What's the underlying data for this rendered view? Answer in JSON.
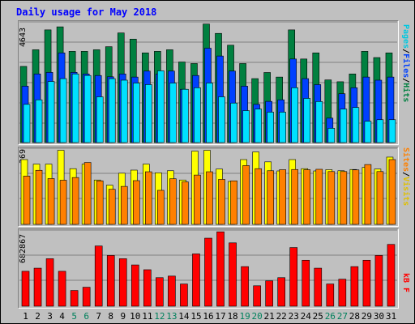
{
  "title": "Daily usage for May 2018",
  "colors": {
    "hits": "#008040",
    "files": "#0040ff",
    "pages": "#00e0ff",
    "visits": "#ffff00",
    "sites": "#ff8000",
    "kbytes": "#ff0000",
    "title": "#0000ff",
    "weekend": "#00805c",
    "weekday": "#000000"
  },
  "chart_data": [
    {
      "type": "bar",
      "panel": "top",
      "y_max_label": "4643",
      "ylim": [
        0,
        4643
      ],
      "legend": [
        "Pages",
        "Files",
        "Hits"
      ],
      "categories": [
        "1",
        "2",
        "3",
        "4",
        "5",
        "6",
        "7",
        "8",
        "9",
        "10",
        "11",
        "12",
        "13",
        "14",
        "15",
        "16",
        "17",
        "18",
        "19",
        "20",
        "21",
        "22",
        "23",
        "24",
        "25",
        "26",
        "27",
        "28",
        "29",
        "30",
        "31"
      ],
      "weekend_days": [
        "5",
        "6",
        "12",
        "13",
        "19",
        "20",
        "26",
        "27"
      ],
      "series": [
        {
          "name": "Hits",
          "values": [
            2930,
            3570,
            4335,
            4452,
            3510,
            3510,
            3570,
            3688,
            4217,
            3980,
            3450,
            3510,
            3570,
            3100,
            3040,
            4560,
            4200,
            3745,
            3040,
            2460,
            2695,
            2520,
            4335,
            3215,
            3450,
            2410,
            2340,
            2640,
            3510,
            3270,
            3450
          ]
        },
        {
          "name": "Files",
          "values": [
            2170,
            2640,
            2700,
            3450,
            2700,
            2640,
            2580,
            2530,
            2640,
            2520,
            2750,
            2640,
            2750,
            2050,
            2580,
            3630,
            3330,
            2750,
            2170,
            1470,
            1585,
            1645,
            3215,
            2460,
            2230,
            940,
            1880,
            2110,
            2520,
            2400,
            2520
          ]
        },
        {
          "name": "Pages",
          "values": [
            1470,
            1645,
            2350,
            2460,
            2640,
            2580,
            1760,
            2460,
            2400,
            2290,
            2230,
            2760,
            2290,
            2050,
            2110,
            2290,
            1760,
            1520,
            1230,
            1290,
            1170,
            1170,
            2110,
            1700,
            1580,
            550,
            1290,
            1350,
            820,
            880,
            880
          ]
        }
      ]
    },
    {
      "type": "bar",
      "panel": "middle",
      "y_max_label": "369",
      "ylim": [
        0,
        369
      ],
      "legend": [
        "Sites",
        "Visits"
      ],
      "categories": [
        "1",
        "2",
        "3",
        "4",
        "5",
        "6",
        "7",
        "8",
        "9",
        "10",
        "11",
        "12",
        "13",
        "14",
        "15",
        "16",
        "17",
        "18",
        "19",
        "20",
        "21",
        "22",
        "23",
        "24",
        "25",
        "26",
        "27",
        "28",
        "29",
        "30",
        "31"
      ],
      "series": [
        {
          "name": "Visits",
          "values": [
            314,
            292,
            292,
            359,
            270,
            292,
            215,
            190,
            248,
            263,
            292,
            250,
            260,
            215,
            355,
            359,
            268,
            208,
            314,
            351,
            303,
            259,
            314,
            270,
            259,
            265,
            260,
            266,
            276,
            268,
            326
          ]
        },
        {
          "name": "Sites",
          "values": [
            234,
            262,
            222,
            214,
            227,
            300,
            211,
            170,
            184,
            212,
            255,
            165,
            221,
            206,
            239,
            255,
            218,
            211,
            285,
            270,
            260,
            265,
            266,
            265,
            267,
            256,
            256,
            264,
            290,
            256,
            314
          ]
        }
      ]
    },
    {
      "type": "bar",
      "panel": "bottom",
      "y_max_label": "682867",
      "ylim": [
        0,
        682867
      ],
      "legend": [
        "KBytes"
      ],
      "legend_text": "kB F",
      "categories": [
        "1",
        "2",
        "3",
        "4",
        "5",
        "6",
        "7",
        "8",
        "9",
        "10",
        "11",
        "12",
        "13",
        "14",
        "15",
        "16",
        "17",
        "18",
        "19",
        "20",
        "21",
        "22",
        "23",
        "24",
        "25",
        "26",
        "27",
        "28",
        "29",
        "30",
        "31"
      ],
      "series": [
        {
          "name": "KBytes",
          "values": [
            313000,
            341000,
            426000,
            313000,
            141000,
            170000,
            540000,
            455000,
            426000,
            370000,
            327000,
            256000,
            270000,
            199000,
            469000,
            610000,
            667000,
            568000,
            355000,
            183000,
            227000,
            256000,
            526000,
            412000,
            341000,
            199000,
            242000,
            355000,
            412000,
            455000,
            554000
          ]
        }
      ]
    }
  ]
}
